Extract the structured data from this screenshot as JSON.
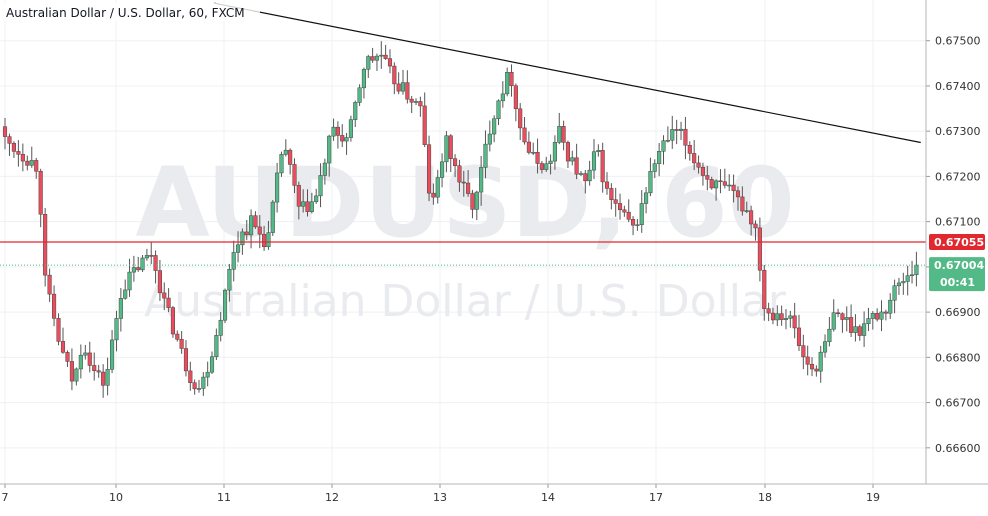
{
  "chart_data": {
    "type": "candlestick",
    "title": "Australian Dollar / U.S. Dollar, 60, FXCM",
    "watermark": {
      "symbol": "AUDUSD, 60",
      "name": "Australian Dollar / U.S. Dollar"
    },
    "ylim": [
      0.6652,
      0.6759
    ],
    "y_ticks": [
      "0.67500",
      "0.67400",
      "0.67300",
      "0.67200",
      "0.67100",
      "0.67000",
      "0.66900",
      "0.66800",
      "0.66700",
      "0.66600"
    ],
    "x_ticks": [
      {
        "label": "7",
        "day": 0
      },
      {
        "label": "10",
        "day": 1
      },
      {
        "label": "11",
        "day": 2
      },
      {
        "label": "12",
        "day": 3
      },
      {
        "label": "13",
        "day": 4
      },
      {
        "label": "14",
        "day": 5
      },
      {
        "label": "17",
        "day": 6
      },
      {
        "label": "18",
        "day": 7
      },
      {
        "label": "19",
        "day": 8
      }
    ],
    "grid": true,
    "colors": {
      "up": "#53b987",
      "down": "#eb4d5c",
      "wick": "#555555",
      "resistance": "#e0282e",
      "price_tag": "#53b987",
      "grid": "#eef0f3"
    },
    "resistance_level": {
      "value": 0.67055,
      "label": "0.67055"
    },
    "last_price": {
      "value": 0.67004,
      "label": "0.67004",
      "countdown": "00:41"
    },
    "trendline": {
      "start": {
        "day": 1.91,
        "price": 0.67583
      },
      "end": {
        "day": 8.44,
        "price": 0.67275
      }
    },
    "anchors": [
      [
        0.0,
        0.6728
      ],
      [
        0.3,
        0.6722
      ],
      [
        0.36,
        0.6697
      ],
      [
        0.5,
        0.6682
      ],
      [
        0.62,
        0.6674
      ],
      [
        0.7,
        0.6684
      ],
      [
        0.8,
        0.6677
      ],
      [
        0.9,
        0.6674
      ],
      [
        1.05,
        0.6695
      ],
      [
        1.2,
        0.67
      ],
      [
        1.33,
        0.6703
      ],
      [
        1.45,
        0.6692
      ],
      [
        1.55,
        0.6685
      ],
      [
        1.68,
        0.6676
      ],
      [
        1.78,
        0.6673
      ],
      [
        1.9,
        0.6682
      ],
      [
        2.0,
        0.6693
      ],
      [
        2.1,
        0.6705
      ],
      [
        2.25,
        0.671
      ],
      [
        2.4,
        0.6705
      ],
      [
        2.55,
        0.6728
      ],
      [
        2.7,
        0.6712
      ],
      [
        2.85,
        0.6715
      ],
      [
        3.0,
        0.673
      ],
      [
        3.15,
        0.6728
      ],
      [
        3.3,
        0.6745
      ],
      [
        3.45,
        0.6747
      ],
      [
        3.55,
        0.6742
      ],
      [
        3.7,
        0.6738
      ],
      [
        3.82,
        0.6735
      ],
      [
        3.92,
        0.6712
      ],
      [
        4.05,
        0.6728
      ],
      [
        4.2,
        0.6718
      ],
      [
        4.32,
        0.6713
      ],
      [
        4.45,
        0.673
      ],
      [
        4.55,
        0.6738
      ],
      [
        4.65,
        0.6743
      ],
      [
        4.75,
        0.673
      ],
      [
        4.85,
        0.6724
      ],
      [
        5.0,
        0.6722
      ],
      [
        5.1,
        0.673
      ],
      [
        5.2,
        0.6724
      ],
      [
        5.35,
        0.6718
      ],
      [
        5.45,
        0.6726
      ],
      [
        5.55,
        0.6716
      ],
      [
        5.7,
        0.6711
      ],
      [
        5.8,
        0.6708
      ],
      [
        5.92,
        0.6718
      ],
      [
        6.0,
        0.6724
      ],
      [
        6.1,
        0.6728
      ],
      [
        6.2,
        0.673
      ],
      [
        6.3,
        0.6726
      ],
      [
        6.45,
        0.672
      ],
      [
        6.55,
        0.6718
      ],
      [
        6.7,
        0.6716
      ],
      [
        6.85,
        0.6712
      ],
      [
        6.92,
        0.6708
      ],
      [
        7.0,
        0.669
      ],
      [
        7.15,
        0.669
      ],
      [
        7.25,
        0.6688
      ],
      [
        7.35,
        0.668
      ],
      [
        7.45,
        0.6677
      ],
      [
        7.55,
        0.6682
      ],
      [
        7.65,
        0.669
      ],
      [
        7.75,
        0.6688
      ],
      [
        7.85,
        0.6686
      ],
      [
        8.0,
        0.6689
      ],
      [
        8.1,
        0.669
      ],
      [
        8.2,
        0.6695
      ],
      [
        8.3,
        0.6698
      ],
      [
        8.4,
        0.67
      ]
    ]
  }
}
